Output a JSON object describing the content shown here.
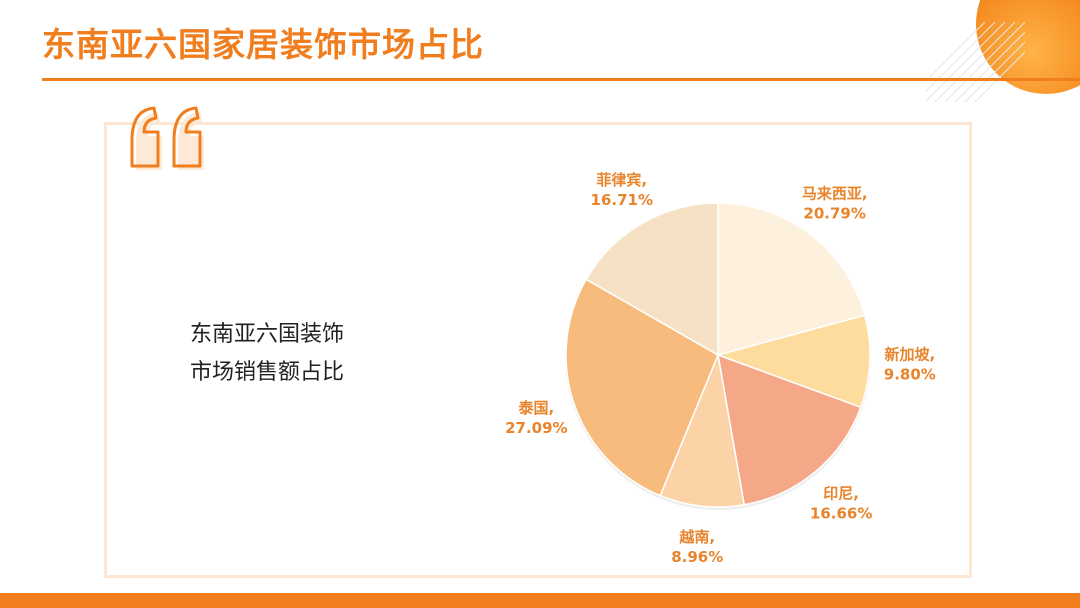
{
  "page": {
    "title": "东南亚六国家居装饰市场占比",
    "subtitle_line1": "东南亚六国装饰",
    "subtitle_line2": "市场销售额占比",
    "accent_color": "#f07d1e"
  },
  "chart_data": {
    "type": "pie",
    "title": "",
    "start_angle_deg": 0,
    "direction": "clockwise",
    "slices": [
      {
        "name": "马来西亚",
        "value": 20.79,
        "label": "20.79%",
        "color": "#fdf0dc"
      },
      {
        "name": "新加坡",
        "value": 9.8,
        "label": "9.80%",
        "color": "#fddc9e"
      },
      {
        "name": "印尼",
        "value": 16.66,
        "label": "16.66%",
        "color": "#f5a887"
      },
      {
        "name": "越南",
        "value": 8.96,
        "label": "8.96%",
        "color": "#fbd3a6"
      },
      {
        "name": "泰国",
        "value": 27.09,
        "label": "27.09%",
        "color": "#f8bb7e"
      },
      {
        "name": "菲律宾",
        "value": 16.71,
        "label": "16.71%",
        "color": "#f6e1c4"
      }
    ]
  }
}
